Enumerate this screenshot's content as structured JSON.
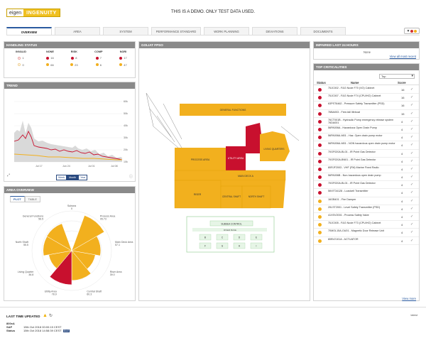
{
  "header": {
    "logo_left": "eigen",
    "logo_right": "INGENUITY",
    "demo_notice": "THIS IS A DEMO. ONLY TEST DATA USED."
  },
  "tabs": [
    {
      "label": "OVERVIEW"
    },
    {
      "label": "AREA"
    },
    {
      "label": "SYSTEM"
    },
    {
      "label": "PERFORMANCE STANDARD"
    },
    {
      "label": "WORK PLANNING"
    },
    {
      "label": "DEVIATIONS"
    },
    {
      "label": "DOCUMENTS"
    }
  ],
  "filter": {
    "icon": "filter-icon",
    "colors": [
      "#d32f2f",
      "#f2b01e"
    ]
  },
  "handling_status": {
    "title": "HANDLING STATUS",
    "columns": [
      "INVALID",
      "NONE",
      "RISK",
      "COMP",
      "NORI"
    ],
    "values": [
      "1",
      "16",
      "8",
      "7",
      "17"
    ],
    "values2": [
      "0",
      "66",
      "23",
      "6",
      "47"
    ]
  },
  "trend": {
    "title": "TREND",
    "y_ticks": [
      "60k",
      "50k",
      "40k",
      "30k",
      "20k",
      "10k",
      "0k"
    ],
    "x_ticks": [
      "Jul 17",
      "Jun 24",
      "Jul 01",
      "Jul 08"
    ],
    "ranges": [
      {
        "label": "Week"
      },
      {
        "label": "Month"
      },
      {
        "label": "Year"
      }
    ],
    "selected_range": "Month"
  },
  "area_overview": {
    "title": "AREA OVERVIEW",
    "subtabs": [
      {
        "label": "PLOT"
      },
      {
        "label": "TABLE"
      }
    ],
    "labels": [
      {
        "name": "Subsea",
        "value": "0"
      },
      {
        "name": "Process Area",
        "value": "95.73"
      },
      {
        "name": "Main Deck Area",
        "value": "57.1"
      },
      {
        "name": "Riser Area",
        "value": "39.0"
      },
      {
        "name": "Central Shaft",
        "value": "60.3"
      },
      {
        "name": "Utility Area",
        "value": "78.9"
      },
      {
        "name": "Living Quarter",
        "value": "36.8"
      },
      {
        "name": "North Shaft",
        "value": "55.5"
      },
      {
        "name": "General Functions",
        "value": "56.5"
      }
    ]
  },
  "map": {
    "title": "GOLIAT FPSO",
    "areas": {
      "general": "GENERAL FUNCTIONS",
      "process": "PROCESS AREA",
      "utility": "UTILITY AREA",
      "living": "LIVING QUARTERS",
      "maindeck": "MAIN DECK A",
      "riser": "RISER",
      "central": "CENTRAL SHAFT",
      "north": "NORTH SHAFT",
      "subsea_control": "SUBSEA CONTROL",
      "riser_base": "RISER BASE"
    },
    "wells": [
      "B",
      "C",
      "D",
      "E",
      "F",
      "G",
      "H",
      "I"
    ]
  },
  "impaired": {
    "title": "IMPAIRED LAST 24 HOURS",
    "none_text": "None",
    "link": "View all most recent"
  },
  "criticalities": {
    "title": "TOP CRITICALITIES",
    "select_value": "Top",
    "col_status": "Status",
    "col_name": "Name",
    "col_score": "Score",
    "rows": [
      {
        "name": "75JC002 - F&G Node F70 (VO) Cabinet",
        "score": "16",
        "color": "#c8102e"
      },
      {
        "name": "75JC007 - F&G Node F74 (CPU/HO) Cabinet",
        "score": "16",
        "color": "#c8102e"
      },
      {
        "name": "63PST6462 - Pressure Safety Transmitter (PSD)",
        "score": "16",
        "color": "#c8102e"
      },
      {
        "name": "76BA003 - Free-fall lifeboat",
        "score": "15",
        "color": "#c8102e"
      },
      {
        "name": "76CT001B - Hydraulic Pump emergency release system 76DA001",
        "score": "4",
        "color": "#c8102e"
      },
      {
        "name": "56PA006A - Hazardous Open Drain Pump",
        "score": "4",
        "color": "#c8102e"
      },
      {
        "name": "56PA006A-M01 - Haz. Open drain pump motor",
        "score": "4",
        "color": "#c8102e"
      },
      {
        "name": "56PA006A-M01 - NON hazardous open drain pump motor",
        "score": "4",
        "color": "#c8102e"
      },
      {
        "name": "70GF020A-BL01 - IR Point Gas Detector",
        "score": "4",
        "color": "#c8102e"
      },
      {
        "name": "70GF020A-BN01 - IR Point Gas Detector",
        "score": "4",
        "color": "#c8102e"
      },
      {
        "name": "80RJF2003 - VHF (FM) Marine Fixed Radio",
        "score": "4",
        "color": "#c8102e"
      },
      {
        "name": "56PA006B - Non-hazardous open drain pump",
        "score": "4",
        "color": "#c8102e"
      },
      {
        "name": "70GF020A-BL01 - IR Point Gas Detector",
        "score": "4",
        "color": "#c8102e"
      },
      {
        "name": "56VIT34128 - Loadcell Transmitter",
        "score": "4",
        "color": "#c8102e"
      },
      {
        "name": "16GB401 - Fire Damper",
        "score": "4",
        "color": "#f2b01e"
      },
      {
        "name": "20LST2001 - Level Safety Transmitter (PSD)",
        "score": "4",
        "color": "#f2b01e"
      },
      {
        "name": "41XSV2001 - Process Safety Valve",
        "score": "4",
        "color": "#f2b01e"
      },
      {
        "name": "75JC005 - F&G Node F73 (CPU/HO) Cabinet",
        "score": "4",
        "color": "#f2b01e"
      },
      {
        "name": "70MOL15A-OU01 - Magnetic Door Release Unit",
        "score": "4",
        "color": "#f2b01e"
      },
      {
        "name": "80BV2101A - ACTUATOR",
        "score": "4",
        "color": "#f2b01e"
      }
    ],
    "view_more": "View more"
  },
  "footer": {
    "title": "LAST TIME UPDATED",
    "latest": "latest",
    "rows": [
      {
        "label": "800xA",
        "value": ""
      },
      {
        "label": "SAP",
        "value": "15th Oct 2018 00:00:15 CEST"
      },
      {
        "label": "Status",
        "value": "15th Oct 2018 14:58:39 CEST"
      }
    ],
    "badge": "IDLE"
  },
  "colors": {
    "red": "#c8102e",
    "amber": "#f2b01e",
    "grey_header": "#8a8a8a",
    "accent": "#2a5aa0"
  }
}
